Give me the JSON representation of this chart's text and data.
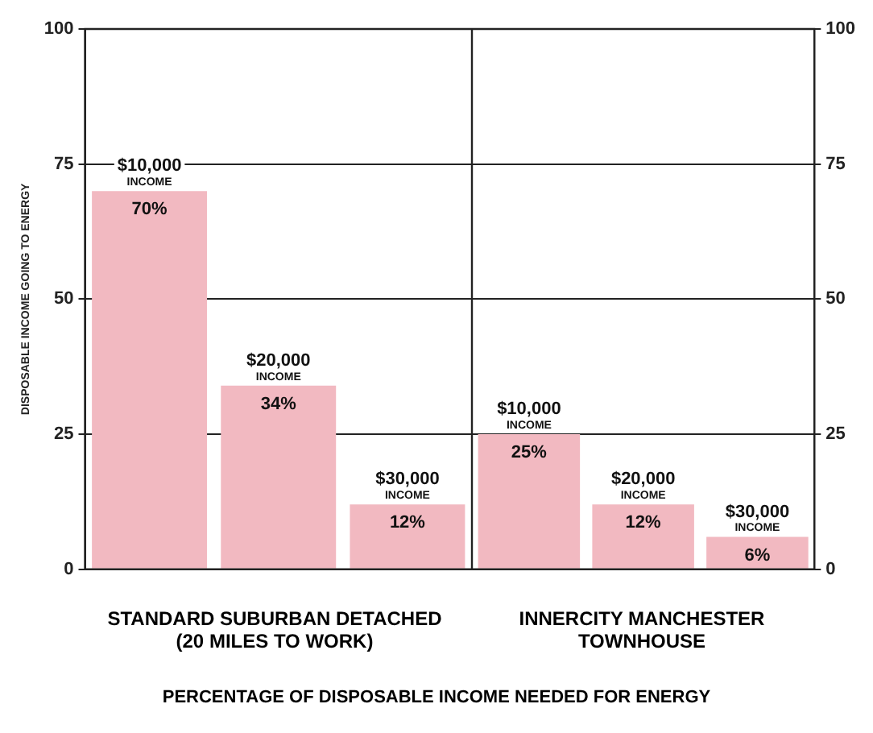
{
  "chart_data": [
    {
      "type": "bar",
      "title": "PERCENTAGE OF DISPOSABLE INCOME NEEDED FOR ENERGY",
      "xlabel": "STANDARD SUBURBAN DETACHED (20 MILES TO WORK)",
      "ylabel": "DISPOSABLE INCOME GOING TO ENERGY",
      "categories": [
        "$10,000 INCOME",
        "$20,000 INCOME",
        "$30,000 INCOME"
      ],
      "values": [
        70,
        34,
        12
      ],
      "value_labels": [
        "70%",
        "34%",
        "12%"
      ],
      "color": "#f2b9c1",
      "ylim": [
        0,
        100
      ],
      "yticks": [
        0,
        25,
        50,
        75,
        100
      ],
      "grid": "y"
    },
    {
      "type": "bar",
      "xlabel": "INNERCITY MANCHESTER TOWNHOUSE",
      "categories": [
        "$10,000 INCOME",
        "$20,000 INCOME",
        "$30,000 INCOME"
      ],
      "values": [
        25,
        12,
        6
      ],
      "value_labels": [
        "25%",
        "12%",
        "6%"
      ],
      "color": "#f2b9c1",
      "ylim": [
        0,
        100
      ],
      "yticks": [
        0,
        25,
        50,
        75,
        100
      ],
      "grid": "y"
    }
  ]
}
